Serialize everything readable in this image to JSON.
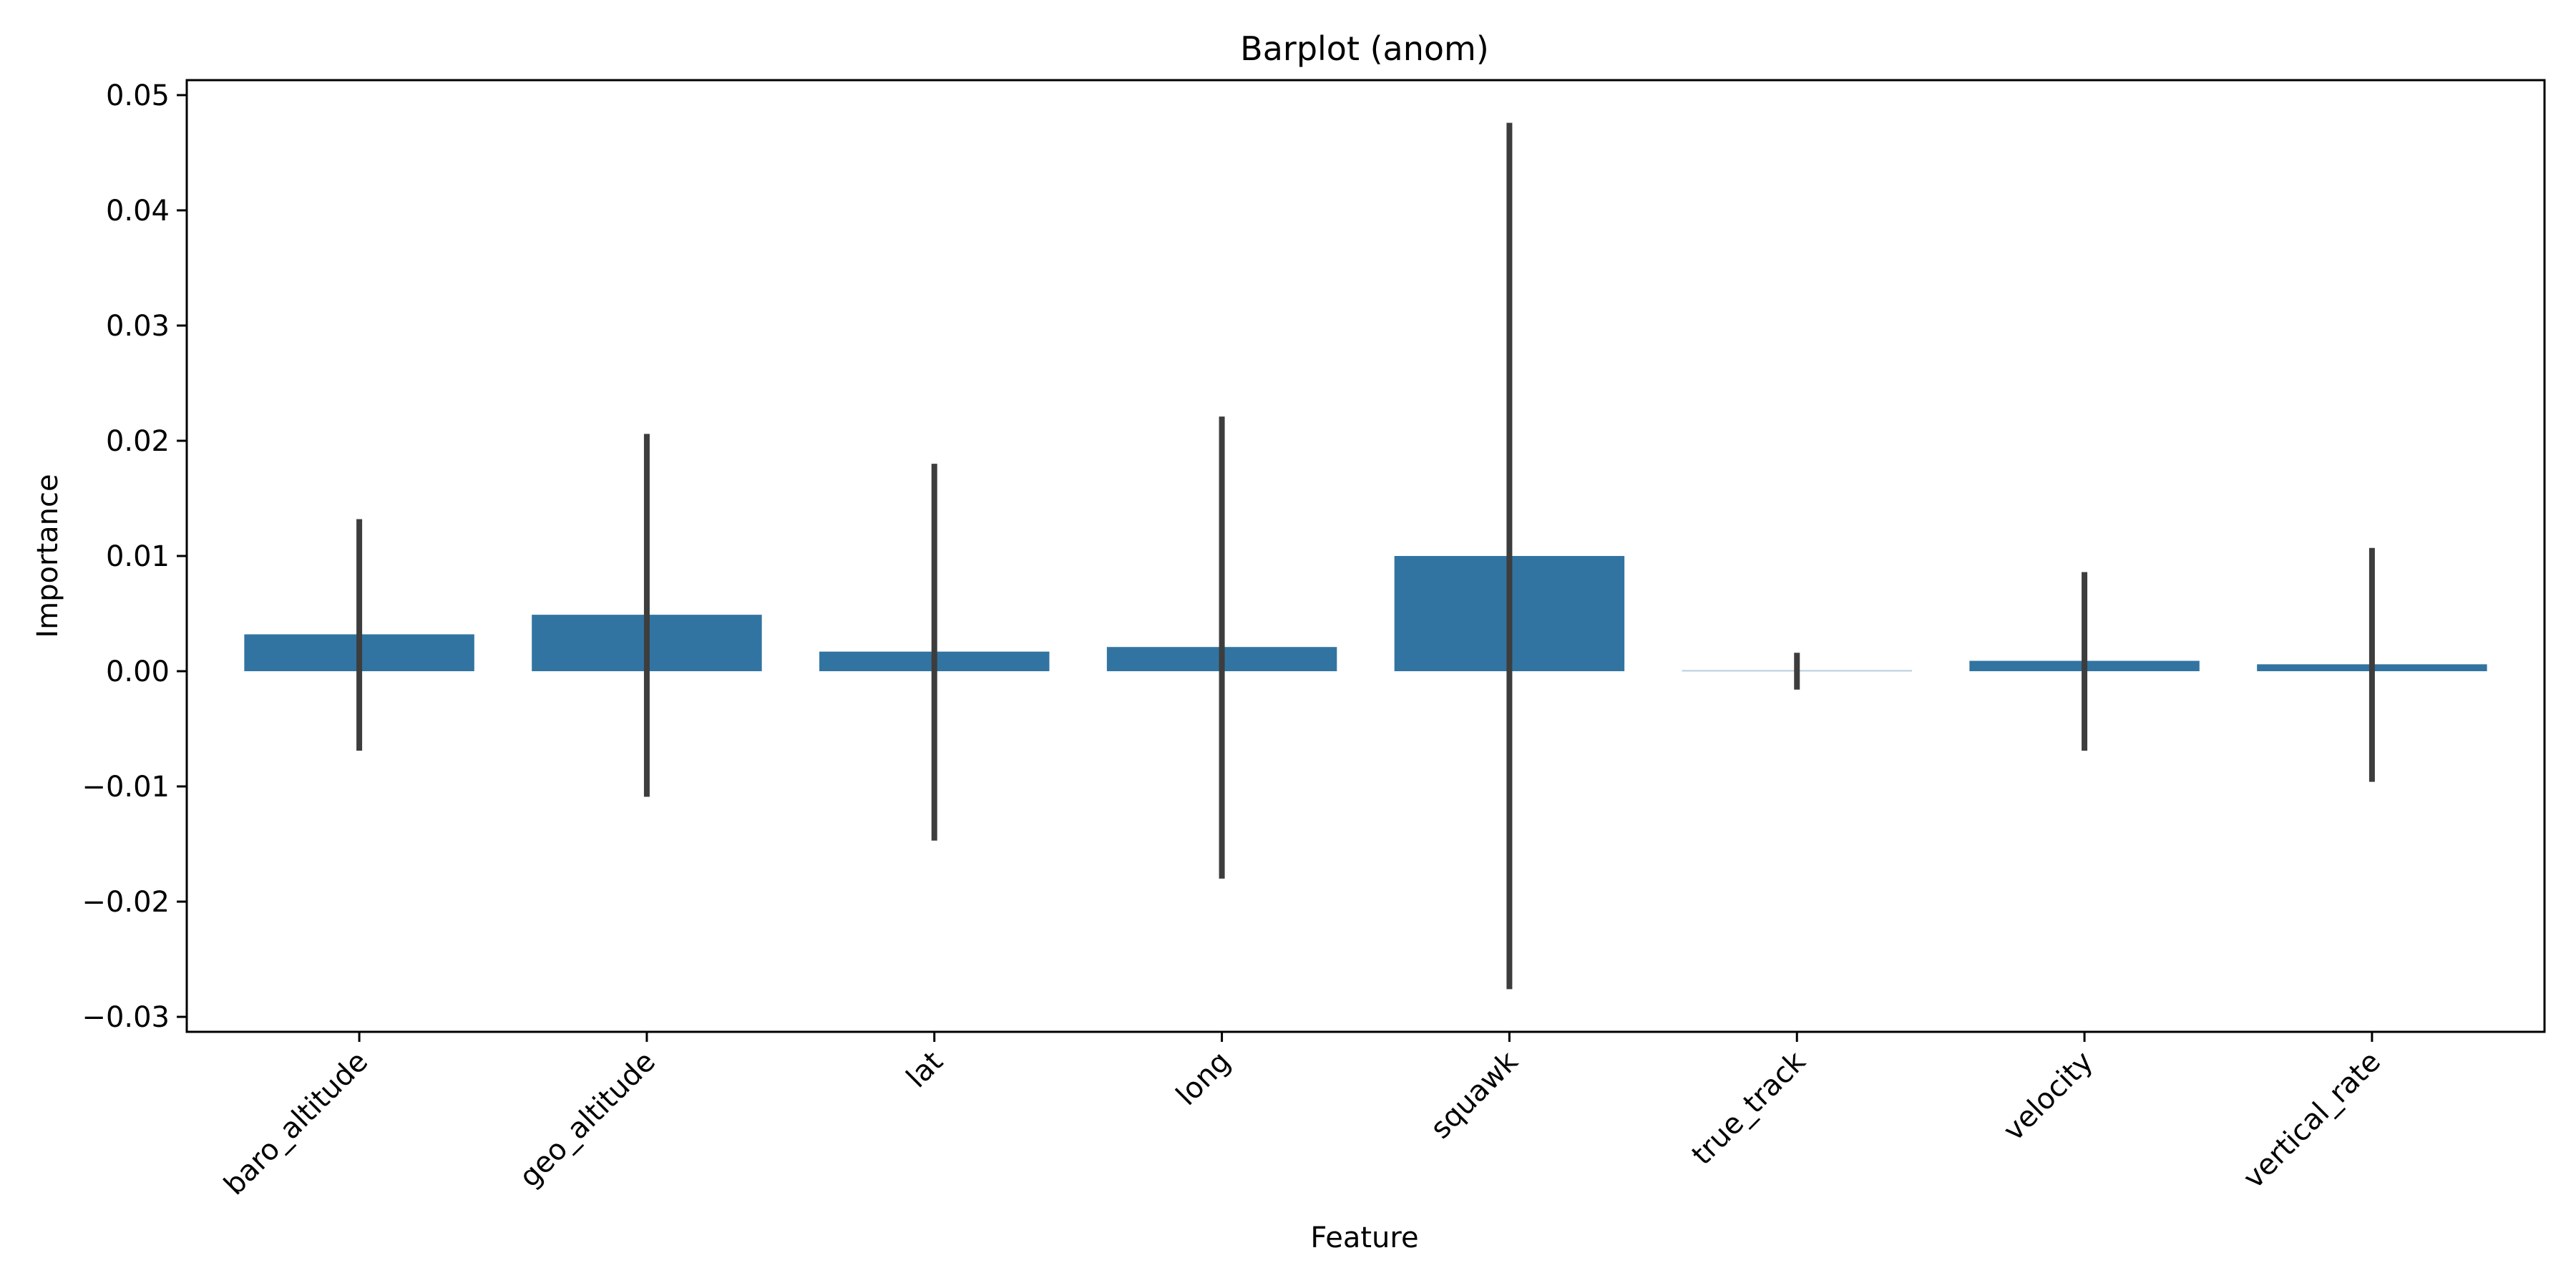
{
  "chart_data": {
    "type": "bar",
    "title": "Barplot (anom)",
    "xlabel": "Feature",
    "ylabel": "Importance",
    "categories": [
      "baro_altitude",
      "geo_altitude",
      "lat",
      "long",
      "squawk",
      "true_track",
      "velocity",
      "vertical_rate"
    ],
    "values": [
      0.0032,
      0.0049,
      0.0017,
      0.0021,
      0.01,
      0.0001,
      0.0009,
      0.0006
    ],
    "error_bars": [
      [
        -0.0069,
        0.0132
      ],
      [
        -0.0109,
        0.0206
      ],
      [
        -0.0147,
        0.018
      ],
      [
        -0.018,
        0.0221
      ],
      [
        -0.0276,
        0.0476
      ],
      [
        -0.0016,
        0.0016
      ],
      [
        -0.0069,
        0.0086
      ],
      [
        -0.0096,
        0.0107
      ]
    ],
    "ylim": [
      -0.0313,
      0.0513
    ],
    "yticks": [
      -0.03,
      -0.02,
      -0.01,
      0.0,
      0.01,
      0.02,
      0.03,
      0.04,
      0.05
    ],
    "ytick_labels": [
      "−0.03",
      "−0.02",
      "−0.01",
      "0.00",
      "0.01",
      "0.02",
      "0.03",
      "0.04",
      "0.05"
    ],
    "grid": false,
    "bar_colors": [
      "#3274a1",
      "#3274a1",
      "#3274a1",
      "#3274a1",
      "#3274a1",
      "#b7cddd",
      "#3274a1",
      "#3274a1"
    ],
    "errorbar_color": "#3d3d3d",
    "axis_color": "#000000"
  }
}
